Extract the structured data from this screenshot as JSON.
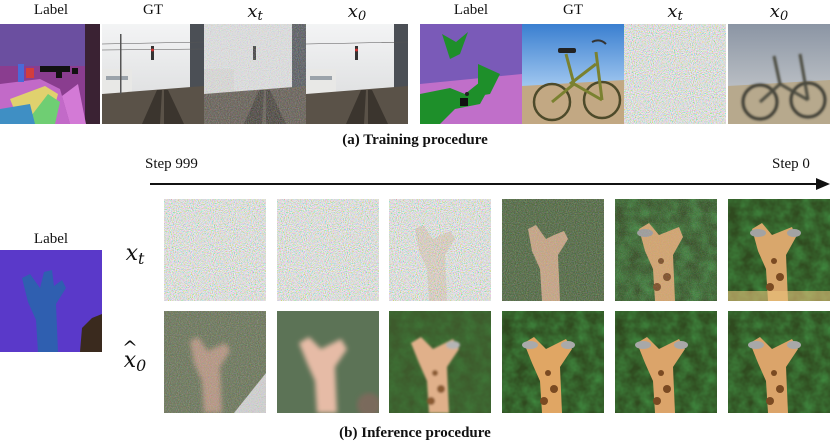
{
  "training": {
    "headers": [
      "Label",
      "GT",
      "x_t",
      "x̂_0",
      "Label",
      "GT",
      "x_t",
      "x̂_0"
    ],
    "caption": "(a) Training procedure"
  },
  "inference": {
    "label_header": "Label",
    "step_start": "Step 999",
    "step_end": "Step 0",
    "row_xt": "x_t",
    "row_x0": "x̂_0",
    "caption": "(b) Inference procedure"
  }
}
